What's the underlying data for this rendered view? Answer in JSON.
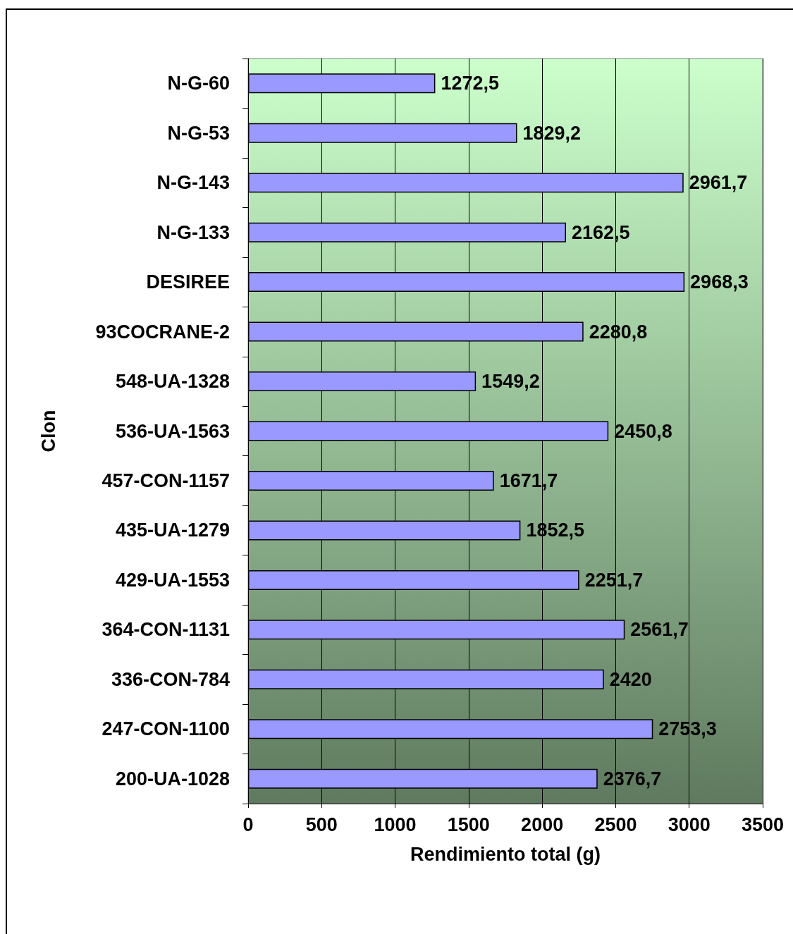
{
  "chart_data": {
    "type": "bar",
    "orientation": "horizontal",
    "xlabel": "Rendimiento total (g)",
    "ylabel": "Clon",
    "categories": [
      "N-G-60",
      "N-G-53",
      "N-G-143",
      "N-G-133",
      "DESIREE",
      "93COCRANE-2",
      "548-UA-1328",
      "536-UA-1563",
      "457-CON-1157",
      "435-UA-1279",
      "429-UA-1553",
      "364-CON-1131",
      "336-CON-784",
      "247-CON-1100",
      "200-UA-1028"
    ],
    "values": [
      1272.5,
      1829.2,
      2961.7,
      2162.5,
      2968.3,
      2280.8,
      1549.2,
      2450.8,
      1671.7,
      1852.5,
      2251.7,
      2561.7,
      2420,
      2753.3,
      2376.7
    ],
    "value_labels": [
      "1272,5",
      "1829,2",
      "2961,7",
      "2162,5",
      "2968,3",
      "2280,8",
      "1549,2",
      "2450,8",
      "1671,7",
      "1852,5",
      "2251,7",
      "2561,7",
      "2420",
      "2753,3",
      "2376,7"
    ],
    "color": "#9999ff",
    "xlim": [
      0,
      3500
    ],
    "xticks": [
      0,
      500,
      1000,
      1500,
      2000,
      2500,
      3000,
      3500
    ],
    "grid": "x"
  }
}
